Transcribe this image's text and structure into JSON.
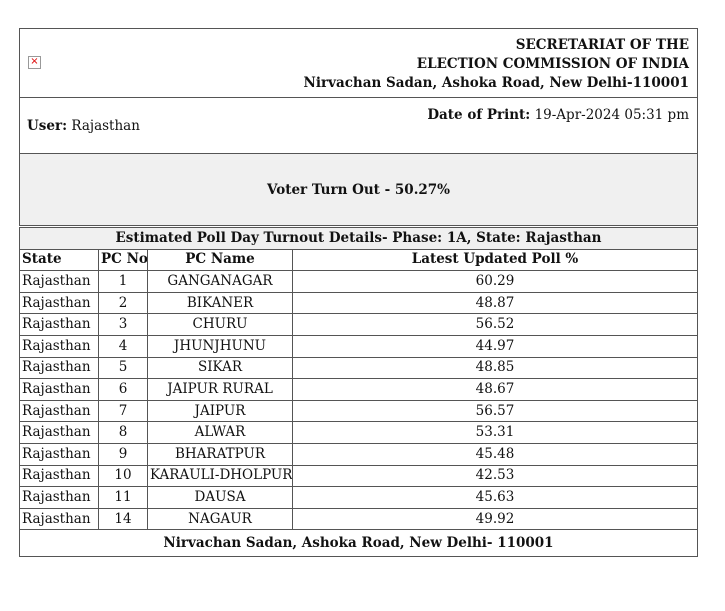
{
  "header": {
    "lines": [
      "SECRETARIAT OF THE",
      "ELECTION COMMISSION OF INDIA",
      "Nirvachan Sadan, Ashoka Road, New Delhi-110001"
    ]
  },
  "user": {
    "label": "User:",
    "value": "Rajasthan"
  },
  "print_date": {
    "label": "Date of Print:",
    "value": "19-Apr-2024 05:31 pm"
  },
  "turnout": "Voter Turn Out - 50.27%",
  "table": {
    "title": "Estimated Poll Day Turnout Details- Phase: 1A, State: Rajasthan",
    "columns": [
      "State",
      "PC No",
      "PC Name",
      "Latest Updated Poll %"
    ],
    "rows": [
      [
        "Rajasthan",
        1,
        "GANGANAGAR",
        60.29
      ],
      [
        "Rajasthan",
        2,
        "BIKANER",
        48.87
      ],
      [
        "Rajasthan",
        3,
        "CHURU",
        56.52
      ],
      [
        "Rajasthan",
        4,
        "JHUNJHUNU",
        44.97
      ],
      [
        "Rajasthan",
        5,
        "SIKAR",
        48.85
      ],
      [
        "Rajasthan",
        6,
        "JAIPUR RURAL",
        48.67
      ],
      [
        "Rajasthan",
        7,
        "JAIPUR",
        56.57
      ],
      [
        "Rajasthan",
        8,
        "ALWAR",
        53.31
      ],
      [
        "Rajasthan",
        9,
        "BHARATPUR",
        45.48
      ],
      [
        "Rajasthan",
        10,
        "KARAULI-DHOLPUR",
        42.53
      ],
      [
        "Rajasthan",
        11,
        "DAUSA",
        45.63
      ],
      [
        "Rajasthan",
        14,
        "NAGAUR",
        49.92
      ]
    ],
    "footer": "Nirvachan Sadan, Ashoka Road, New Delhi- 110001"
  }
}
